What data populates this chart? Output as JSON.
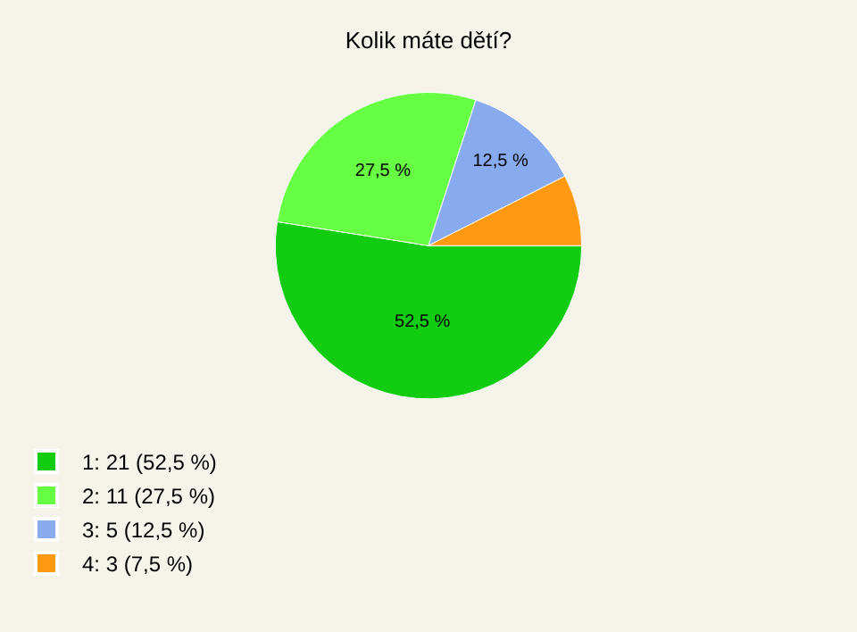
{
  "chart_data": {
    "type": "pie",
    "title": "Kolik máte dětí?",
    "categories": [
      "1: 21 (52,5 %)",
      "2: 11 (27,5 %)",
      "3: 5 (12,5 %)",
      "4: 3 (7,5 %)"
    ],
    "values": [
      52.5,
      27.5,
      12.5,
      7.5
    ],
    "colors": [
      "#11cc11",
      "#66ff44",
      "#88aaee",
      "#ff9911"
    ],
    "value_labels": [
      "52,5 %",
      "27,5 %",
      "12,5 %",
      null
    ],
    "legend": "bottom left"
  }
}
